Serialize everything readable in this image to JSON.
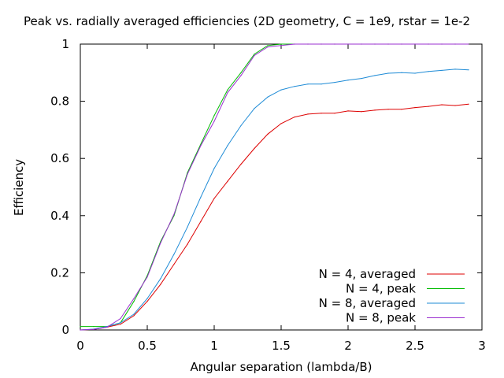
{
  "chart_data": {
    "type": "line",
    "title": "Peak vs. radially averaged efficiencies (2D geometry, C = 1e9, rstar = 1e-2",
    "xlabel": "Angular separation (lambda/B)",
    "ylabel": "Efficiency",
    "xlim": [
      0,
      3
    ],
    "ylim": [
      0,
      1
    ],
    "xticks": [
      0,
      0.5,
      1,
      1.5,
      2,
      2.5,
      3
    ],
    "xtick_labels": [
      "0",
      "0.5",
      "1",
      "1.5",
      "2",
      "2.5",
      "3"
    ],
    "yticks": [
      0,
      0.2,
      0.4,
      0.6,
      0.8,
      1
    ],
    "ytick_labels": [
      "0",
      "0.2",
      "0.4",
      "0.6",
      "0.8",
      "1"
    ],
    "grid": false,
    "legend_position": "bottom-right",
    "x": [
      0,
      0.1,
      0.2,
      0.3,
      0.4,
      0.5,
      0.6,
      0.7,
      0.8,
      0.9,
      1.0,
      1.1,
      1.2,
      1.3,
      1.4,
      1.5,
      1.6,
      1.7,
      1.8,
      1.9,
      2.0,
      2.1,
      2.2,
      2.3,
      2.4,
      2.5,
      2.6,
      2.7,
      2.8,
      2.9
    ],
    "series": [
      {
        "name": "N = 4, averaged",
        "color": "#dd0000",
        "values": [
          0,
          0.002,
          0.01,
          0.02,
          0.05,
          0.1,
          0.16,
          0.23,
          0.3,
          0.38,
          0.46,
          0.52,
          0.58,
          0.635,
          0.685,
          0.722,
          0.745,
          0.755,
          0.758,
          0.758,
          0.766,
          0.764,
          0.769,
          0.772,
          0.772,
          0.778,
          0.782,
          0.788,
          0.785,
          0.79
        ]
      },
      {
        "name": "N = 4, peak",
        "color": "#00bb00",
        "values": [
          0.012,
          0.012,
          0.012,
          0.025,
          0.1,
          0.19,
          0.31,
          0.4,
          0.55,
          0.65,
          0.75,
          0.84,
          0.9,
          0.965,
          0.995,
          1.0,
          1.0,
          1.0,
          1.0,
          1.0,
          1.0,
          1.0,
          1.0,
          1.0,
          1.0,
          1.0,
          1.0,
          1.0,
          1.0,
          1.0
        ]
      },
      {
        "name": "N = 8, averaged",
        "color": "#1e8bd6",
        "values": [
          0,
          0.003,
          0.012,
          0.025,
          0.055,
          0.11,
          0.18,
          0.265,
          0.36,
          0.465,
          0.565,
          0.645,
          0.715,
          0.775,
          0.815,
          0.84,
          0.852,
          0.86,
          0.86,
          0.866,
          0.874,
          0.88,
          0.89,
          0.898,
          0.9,
          0.898,
          0.904,
          0.908,
          0.912,
          0.91
        ]
      },
      {
        "name": "N = 8, peak",
        "color": "#9b30d0",
        "values": [
          0,
          0.002,
          0.01,
          0.04,
          0.11,
          0.185,
          0.305,
          0.405,
          0.545,
          0.645,
          0.73,
          0.83,
          0.89,
          0.96,
          0.99,
          0.995,
          1.0,
          1.0,
          1.0,
          1.0,
          1.0,
          1.0,
          1.0,
          1.0,
          1.0,
          1.0,
          1.0,
          1.0,
          1.0,
          1.0
        ]
      }
    ]
  }
}
